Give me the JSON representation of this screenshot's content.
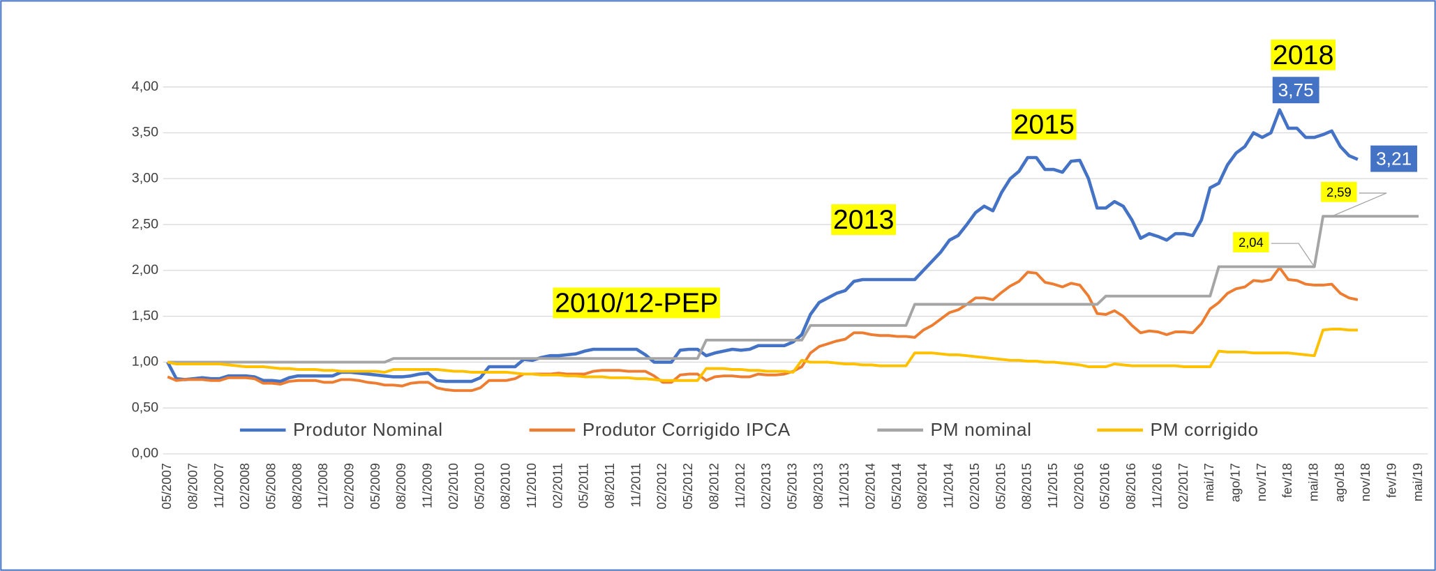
{
  "chart_data": {
    "type": "line",
    "categories": [
      "05/2007",
      null,
      null,
      "08/2007",
      null,
      null,
      "11/2007",
      null,
      null,
      "02/2008",
      null,
      null,
      "05/2008",
      null,
      null,
      "08/2008",
      null,
      null,
      "11/2008",
      null,
      null,
      "02/2009",
      null,
      null,
      "05/2009",
      null,
      null,
      "08/2009",
      null,
      null,
      "11/2009",
      null,
      null,
      "02/2010",
      null,
      null,
      "05/2010",
      null,
      null,
      "08/2010",
      null,
      null,
      "11/2010",
      null,
      null,
      "02/2011",
      null,
      null,
      "05/2011",
      null,
      null,
      "08/2011",
      null,
      null,
      "11/2011",
      null,
      null,
      "02/2012",
      null,
      null,
      "05/2012",
      null,
      null,
      "08/2012",
      null,
      null,
      "11/2012",
      null,
      null,
      "02/2013",
      null,
      null,
      "05/2013",
      null,
      null,
      "08/2013",
      null,
      null,
      "11/2013",
      null,
      null,
      "02/2014",
      null,
      null,
      "05/2014",
      null,
      null,
      "08/2014",
      null,
      null,
      "11/2014",
      null,
      null,
      "02/2015",
      null,
      null,
      "05/2015",
      null,
      null,
      "08/2015",
      null,
      null,
      "11/2015",
      null,
      null,
      "02/2016",
      null,
      null,
      "05/2016",
      null,
      null,
      "08/2016",
      null,
      null,
      "11/2016",
      null,
      null,
      "02/2017",
      null,
      null,
      "mai/17",
      null,
      null,
      "ago/17",
      null,
      null,
      "nov/17",
      null,
      null,
      "fev/18",
      null,
      null,
      "mai/18",
      null,
      null,
      "ago/18",
      null,
      null,
      "nov/18",
      null,
      null,
      "fev/19",
      null,
      null,
      "mai/19"
    ],
    "series": [
      {
        "name": "Produtor Nominal",
        "color": "#4472c4",
        "values": [
          1.0,
          0.82,
          0.81,
          0.82,
          0.83,
          0.82,
          0.82,
          0.85,
          0.85,
          0.85,
          0.84,
          0.8,
          0.8,
          0.79,
          0.83,
          0.85,
          0.85,
          0.85,
          0.85,
          0.85,
          0.89,
          0.89,
          0.88,
          0.87,
          0.86,
          0.85,
          0.84,
          0.84,
          0.85,
          0.87,
          0.88,
          0.8,
          0.79,
          0.79,
          0.79,
          0.79,
          0.83,
          0.95,
          0.95,
          0.95,
          0.95,
          1.03,
          1.02,
          1.05,
          1.07,
          1.07,
          1.08,
          1.09,
          1.12,
          1.14,
          1.14,
          1.14,
          1.14,
          1.14,
          1.14,
          1.08,
          1.0,
          1.0,
          1.0,
          1.13,
          1.14,
          1.14,
          1.07,
          1.1,
          1.12,
          1.14,
          1.13,
          1.14,
          1.18,
          1.18,
          1.18,
          1.18,
          1.22,
          1.3,
          1.52,
          1.65,
          1.7,
          1.75,
          1.78,
          1.88,
          1.9,
          1.9,
          1.9,
          1.9,
          1.9,
          1.9,
          1.9,
          2.0,
          2.1,
          2.2,
          2.33,
          2.38,
          2.5,
          2.63,
          2.7,
          2.65,
          2.85,
          3.0,
          3.08,
          3.23,
          3.23,
          3.1,
          3.1,
          3.07,
          3.19,
          3.2,
          3.0,
          2.68,
          2.68,
          2.75,
          2.7,
          2.55,
          2.35,
          2.4,
          2.37,
          2.33,
          2.4,
          2.4,
          2.38,
          2.55,
          2.9,
          2.95,
          3.15,
          3.28,
          3.35,
          3.5,
          3.45,
          3.5,
          3.75,
          3.55,
          3.55,
          3.45,
          3.45,
          3.48,
          3.52,
          3.35,
          3.25,
          3.21,
          null,
          null,
          null,
          null,
          null,
          null,
          null
        ],
        "value_labels": [
          null,
          null,
          null,
          null,
          null,
          null,
          null,
          null,
          null,
          null,
          null,
          null,
          null,
          null,
          null,
          null,
          null,
          null,
          null,
          null,
          null,
          null,
          null,
          null,
          null,
          null,
          null,
          null,
          null,
          null,
          null,
          null,
          null,
          null,
          null,
          null,
          null,
          null,
          null,
          null,
          null,
          null,
          null,
          null,
          null,
          null,
          null,
          null,
          null,
          null,
          null,
          null,
          null,
          null,
          null,
          null,
          null,
          null,
          null,
          null,
          null,
          null,
          null,
          null,
          null,
          null,
          null,
          null,
          null,
          null,
          null,
          null,
          null,
          null,
          null,
          null,
          null,
          null,
          null,
          null,
          null,
          null,
          null,
          null,
          null,
          null,
          null,
          null,
          null,
          null,
          null,
          null,
          null,
          null,
          null,
          null,
          null,
          null,
          null,
          null,
          null,
          null,
          null,
          null,
          null,
          null,
          null,
          null,
          null,
          null,
          null,
          null,
          null,
          null,
          null,
          null,
          null,
          null,
          null,
          null,
          null,
          null,
          null,
          null,
          null,
          null,
          null,
          null,
          "3,75",
          null,
          null,
          null,
          null,
          null,
          null,
          null,
          null,
          "3,21",
          null,
          null,
          null,
          null,
          null,
          null,
          null
        ]
      },
      {
        "name": "Produtor Corrigido IPCA",
        "color": "#ed7d31",
        "values": [
          0.84,
          0.8,
          0.81,
          0.81,
          0.81,
          0.8,
          0.8,
          0.83,
          0.83,
          0.83,
          0.82,
          0.77,
          0.77,
          0.76,
          0.79,
          0.8,
          0.8,
          0.8,
          0.78,
          0.78,
          0.81,
          0.81,
          0.8,
          0.78,
          0.77,
          0.75,
          0.75,
          0.74,
          0.77,
          0.78,
          0.78,
          0.72,
          0.7,
          0.69,
          0.69,
          0.69,
          0.72,
          0.8,
          0.8,
          0.8,
          0.82,
          0.87,
          0.87,
          0.87,
          0.87,
          0.88,
          0.87,
          0.87,
          0.87,
          0.9,
          0.91,
          0.91,
          0.91,
          0.9,
          0.9,
          0.9,
          0.85,
          0.78,
          0.78,
          0.86,
          0.87,
          0.87,
          0.8,
          0.84,
          0.85,
          0.85,
          0.84,
          0.84,
          0.87,
          0.86,
          0.86,
          0.87,
          0.9,
          0.95,
          1.1,
          1.17,
          1.2,
          1.23,
          1.25,
          1.32,
          1.32,
          1.3,
          1.29,
          1.29,
          1.28,
          1.28,
          1.27,
          1.35,
          1.4,
          1.47,
          1.54,
          1.57,
          1.63,
          1.7,
          1.7,
          1.68,
          1.76,
          1.83,
          1.88,
          1.98,
          1.97,
          1.87,
          1.85,
          1.82,
          1.86,
          1.84,
          1.72,
          1.53,
          1.52,
          1.56,
          1.5,
          1.4,
          1.32,
          1.34,
          1.33,
          1.3,
          1.33,
          1.33,
          1.32,
          1.42,
          1.58,
          1.65,
          1.75,
          1.8,
          1.82,
          1.89,
          1.88,
          1.9,
          2.03,
          1.9,
          1.89,
          1.85,
          1.84,
          1.84,
          1.85,
          1.75,
          1.7,
          1.68,
          null,
          null,
          null,
          null,
          null,
          null,
          null
        ]
      },
      {
        "name": "PM nominal",
        "color": "#a5a5a5",
        "values": [
          1.0,
          1.0,
          1.0,
          1.0,
          1.0,
          1.0,
          1.0,
          1.0,
          1.0,
          1.0,
          1.0,
          1.0,
          1.0,
          1.0,
          1.0,
          1.0,
          1.0,
          1.0,
          1.0,
          1.0,
          1.0,
          1.0,
          1.0,
          1.0,
          1.0,
          1.0,
          1.04,
          1.04,
          1.04,
          1.04,
          1.04,
          1.04,
          1.04,
          1.04,
          1.04,
          1.04,
          1.04,
          1.04,
          1.04,
          1.04,
          1.04,
          1.04,
          1.04,
          1.04,
          1.04,
          1.04,
          1.04,
          1.04,
          1.04,
          1.04,
          1.04,
          1.04,
          1.04,
          1.04,
          1.04,
          1.04,
          1.04,
          1.04,
          1.04,
          1.04,
          1.04,
          1.04,
          1.24,
          1.24,
          1.24,
          1.24,
          1.24,
          1.24,
          1.24,
          1.24,
          1.24,
          1.24,
          1.24,
          1.24,
          1.4,
          1.4,
          1.4,
          1.4,
          1.4,
          1.4,
          1.4,
          1.4,
          1.4,
          1.4,
          1.4,
          1.4,
          1.63,
          1.63,
          1.63,
          1.63,
          1.63,
          1.63,
          1.63,
          1.63,
          1.63,
          1.63,
          1.63,
          1.63,
          1.63,
          1.63,
          1.63,
          1.63,
          1.63,
          1.63,
          1.63,
          1.63,
          1.63,
          1.63,
          1.72,
          1.72,
          1.72,
          1.72,
          1.72,
          1.72,
          1.72,
          1.72,
          1.72,
          1.72,
          1.72,
          1.72,
          1.72,
          2.04,
          2.04,
          2.04,
          2.04,
          2.04,
          2.04,
          2.04,
          2.04,
          2.04,
          2.04,
          2.04,
          2.04,
          2.59,
          2.59,
          2.59,
          2.59,
          2.59,
          2.59,
          2.59,
          2.59,
          2.59,
          2.59,
          2.59,
          2.59
        ],
        "value_labels": [
          null,
          null,
          null,
          null,
          null,
          null,
          null,
          null,
          null,
          null,
          null,
          null,
          null,
          null,
          null,
          null,
          null,
          null,
          null,
          null,
          null,
          null,
          null,
          null,
          null,
          null,
          null,
          null,
          null,
          null,
          null,
          null,
          null,
          null,
          null,
          null,
          null,
          null,
          null,
          null,
          null,
          null,
          null,
          null,
          null,
          null,
          null,
          null,
          null,
          null,
          null,
          null,
          null,
          null,
          null,
          null,
          null,
          null,
          null,
          null,
          null,
          null,
          null,
          null,
          null,
          null,
          null,
          null,
          null,
          null,
          null,
          null,
          null,
          null,
          null,
          null,
          null,
          null,
          null,
          null,
          null,
          null,
          null,
          null,
          null,
          null,
          null,
          null,
          null,
          null,
          null,
          null,
          null,
          null,
          null,
          null,
          null,
          null,
          null,
          null,
          null,
          null,
          null,
          null,
          null,
          null,
          null,
          null,
          null,
          null,
          null,
          null,
          null,
          null,
          null,
          null,
          null,
          null,
          null,
          null,
          null,
          null,
          null,
          null,
          null,
          null,
          null,
          null,
          null,
          null,
          null,
          null,
          "2,04",
          null,
          "2,59",
          null,
          null,
          null,
          null,
          null,
          null,
          null,
          null,
          null,
          null
        ]
      },
      {
        "name": "PM corrigido",
        "color": "#ffc000",
        "values": [
          1.0,
          0.98,
          0.98,
          0.98,
          0.98,
          0.98,
          0.98,
          0.97,
          0.96,
          0.95,
          0.95,
          0.95,
          0.94,
          0.93,
          0.93,
          0.92,
          0.92,
          0.92,
          0.91,
          0.91,
          0.9,
          0.9,
          0.9,
          0.9,
          0.9,
          0.89,
          0.92,
          0.92,
          0.92,
          0.92,
          0.92,
          0.92,
          0.91,
          0.9,
          0.9,
          0.89,
          0.89,
          0.89,
          0.89,
          0.89,
          0.88,
          0.87,
          0.87,
          0.86,
          0.86,
          0.86,
          0.85,
          0.85,
          0.84,
          0.84,
          0.84,
          0.83,
          0.83,
          0.83,
          0.82,
          0.82,
          0.81,
          0.8,
          0.8,
          0.8,
          0.8,
          0.8,
          0.93,
          0.93,
          0.93,
          0.92,
          0.92,
          0.91,
          0.91,
          0.9,
          0.9,
          0.9,
          0.89,
          1.02,
          1.0,
          1.0,
          1.0,
          0.99,
          0.98,
          0.98,
          0.97,
          0.97,
          0.96,
          0.96,
          0.96,
          0.96,
          1.1,
          1.1,
          1.1,
          1.09,
          1.08,
          1.08,
          1.07,
          1.06,
          1.05,
          1.04,
          1.03,
          1.02,
          1.02,
          1.01,
          1.01,
          1.0,
          1.0,
          0.99,
          0.98,
          0.97,
          0.95,
          0.95,
          0.95,
          0.98,
          0.97,
          0.96,
          0.96,
          0.96,
          0.96,
          0.96,
          0.96,
          0.95,
          0.95,
          0.95,
          0.95,
          1.12,
          1.11,
          1.11,
          1.11,
          1.1,
          1.1,
          1.1,
          1.1,
          1.1,
          1.09,
          1.08,
          1.07,
          1.35,
          1.36,
          1.36,
          1.35,
          1.35,
          null,
          null,
          null,
          null,
          null,
          null,
          null
        ]
      }
    ],
    "ylim": [
      0,
      4
    ],
    "yticks": [
      {
        "value": 0,
        "label": "0,00"
      },
      {
        "value": 0.5,
        "label": "0,50"
      },
      {
        "value": 1,
        "label": "1,00"
      },
      {
        "value": 1.5,
        "label": "1,50"
      },
      {
        "value": 2,
        "label": "2,00"
      },
      {
        "value": 2.5,
        "label": "2,50"
      },
      {
        "value": 3,
        "label": "3,00"
      },
      {
        "value": 3.5,
        "label": "3,50"
      },
      {
        "value": 4,
        "label": "4,00"
      }
    ],
    "grid": true,
    "annotations": [
      "2010/12-PEP",
      "2013",
      "2015",
      "2018"
    ]
  }
}
